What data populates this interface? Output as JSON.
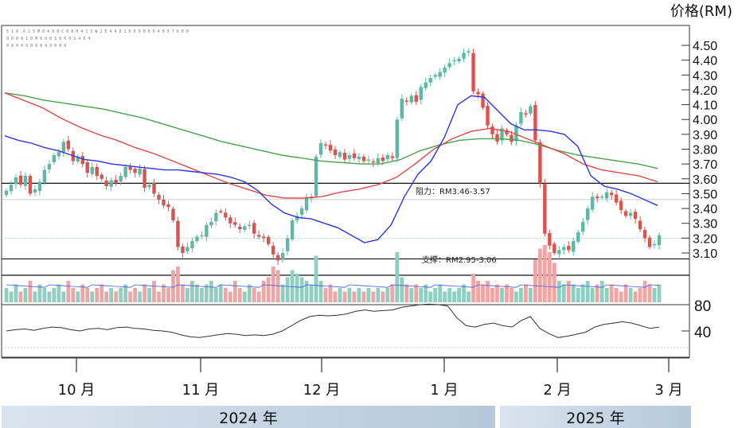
{
  "chart_data": {
    "type": "candlestick",
    "unit_label": "价格(RM)",
    "header_lines": [
      "5 1 0 .6 1 5 M 0 4 0 0 C 0 0 H 4 1 5 W 2 E 4 4 0 1 0 0 0 0 0 0 4 0 9 7 6 0 0",
      "0 0 0 0 1 0 M 0 0 0 5 0 0 0 1 4 0 4",
      "0 0 0 0 0 0 0 0 4 0 0 0 0"
    ],
    "price_axis": {
      "ylim": [
        3.02,
        4.55
      ],
      "ticks": [
        "4.50",
        "4.40",
        "4.30",
        "4.20",
        "4.10",
        "4.00",
        "3.90",
        "3.80",
        "3.70",
        "3.60",
        "3.50",
        "3.40",
        "3.30",
        "3.20",
        "3.10"
      ]
    },
    "indicator_axis": {
      "ticks": [
        "80",
        "40"
      ]
    },
    "months": [
      "10 月",
      "11 月",
      "12 月",
      "1 月",
      "2 月",
      "3 月"
    ],
    "years": [
      "2024 年",
      "2025 年"
    ],
    "resistance": {
      "label": "阻力：RM3.46-3.57",
      "low": 3.46,
      "high": 3.57
    },
    "support": {
      "label": "支撑：RM2.95-3.06",
      "low": 2.95,
      "high": 3.06
    },
    "closes": [
      3.52,
      3.56,
      3.61,
      3.56,
      3.62,
      3.5,
      3.53,
      3.58,
      3.66,
      3.7,
      3.76,
      3.78,
      3.85,
      3.8,
      3.72,
      3.75,
      3.7,
      3.64,
      3.68,
      3.62,
      3.6,
      3.55,
      3.59,
      3.57,
      3.62,
      3.68,
      3.66,
      3.64,
      3.67,
      3.54,
      3.56,
      3.5,
      3.46,
      3.42,
      3.41,
      3.32,
      3.14,
      3.1,
      3.14,
      3.18,
      3.21,
      3.22,
      3.29,
      3.31,
      3.37,
      3.38,
      3.34,
      3.3,
      3.29,
      3.26,
      3.28,
      3.29,
      3.23,
      3.21,
      3.2,
      3.16,
      3.09,
      3.05,
      3.1,
      3.2,
      3.32,
      3.35,
      3.4,
      3.47,
      3.48,
      3.75,
      3.84,
      3.83,
      3.79,
      3.76,
      3.78,
      3.73,
      3.76,
      3.74,
      3.75,
      3.72,
      3.73,
      3.71,
      3.74,
      3.72,
      3.76,
      3.74,
      4.0,
      4.14,
      4.12,
      4.16,
      4.12,
      4.22,
      4.25,
      4.28,
      4.3,
      4.32,
      4.35,
      4.38,
      4.4,
      4.41,
      4.45,
      4.46,
      4.19,
      4.17,
      4.08,
      3.96,
      3.9,
      3.85,
      3.94,
      3.9,
      3.85,
      3.96,
      4.05,
      4.04,
      4.09,
      3.86,
      3.57,
      3.23,
      3.15,
      3.1,
      3.12,
      3.14,
      3.12,
      3.18,
      3.24,
      3.31,
      3.4,
      3.48,
      3.47,
      3.48,
      3.51,
      3.49,
      3.44,
      3.39,
      3.35,
      3.37,
      3.33,
      3.26,
      3.2,
      3.14,
      3.16,
      3.22
    ],
    "ma_short": [
      3.89,
      3.86,
      3.84,
      3.81,
      3.79,
      3.76,
      3.73,
      3.72,
      3.7,
      3.69,
      3.68,
      3.67,
      3.66,
      3.66,
      3.65,
      3.64,
      3.63,
      3.61,
      3.58,
      3.52,
      3.43,
      3.37,
      3.34,
      3.33,
      3.3,
      3.27,
      3.22,
      3.17,
      3.19,
      3.29,
      3.48,
      3.63,
      3.72,
      3.88,
      4.1,
      4.16,
      4.15,
      4.06,
      3.97,
      3.93,
      3.93,
      3.92,
      3.9,
      3.82,
      3.62,
      3.55,
      3.53,
      3.5,
      3.46,
      3.42
    ],
    "ma_mid": [
      4.18,
      4.13,
      4.08,
      4.01,
      3.95,
      3.9,
      3.86,
      3.81,
      3.77,
      3.72,
      3.67,
      3.62,
      3.57,
      3.53,
      3.49,
      3.47,
      3.47,
      3.48,
      3.51,
      3.53,
      3.56,
      3.61,
      3.7,
      3.8,
      3.87,
      3.92,
      3.94,
      3.92,
      3.87,
      3.82,
      3.77,
      3.7,
      3.66,
      3.64,
      3.62,
      3.58
    ],
    "ma_long": [
      4.18,
      4.16,
      4.13,
      4.11,
      4.09,
      4.07,
      4.04,
      4.01,
      3.97,
      3.93,
      3.89,
      3.85,
      3.82,
      3.79,
      3.76,
      3.74,
      3.72,
      3.71,
      3.7,
      3.7,
      3.73,
      3.79,
      3.83,
      3.86,
      3.87,
      3.87,
      3.86,
      3.83,
      3.79,
      3.76,
      3.74,
      3.72,
      3.7,
      3.67
    ],
    "volume_series": [
      0.4,
      0.3,
      0.5,
      0.3,
      0.4,
      0.6,
      0.3,
      0.5,
      0.4,
      0.3,
      0.4,
      0.5,
      0.3,
      0.6,
      0.4,
      0.3,
      0.5,
      0.4,
      0.3,
      0.4,
      0.5,
      0.3,
      0.4,
      0.3,
      0.4,
      0.5,
      0.3,
      0.4,
      0.3,
      0.5,
      0.4,
      0.6,
      0.3,
      0.5,
      0.4,
      0.9,
      1.0,
      0.5,
      0.4,
      0.6,
      0.5,
      0.4,
      0.5,
      0.6,
      0.4,
      0.5,
      0.4,
      0.3,
      0.6,
      0.4,
      0.3,
      0.5,
      0.4,
      0.3,
      0.6,
      0.7,
      1.0,
      0.9,
      0.5,
      0.7,
      0.9,
      0.8,
      0.7,
      0.6,
      0.5,
      1.3,
      0.6,
      0.4,
      0.5,
      0.3,
      0.4,
      0.3,
      0.4,
      0.3,
      0.4,
      0.3,
      0.4,
      0.3,
      0.4,
      0.3,
      0.4,
      0.5,
      1.4,
      0.7,
      0.5,
      0.4,
      0.5,
      0.4,
      0.5,
      0.3,
      0.4,
      0.5,
      0.3,
      0.4,
      0.3,
      0.4,
      0.5,
      0.3,
      0.8,
      0.6,
      0.5,
      0.6,
      0.4,
      0.5,
      0.4,
      0.5,
      0.4,
      0.3,
      0.4,
      0.5,
      0.4,
      1.2,
      1.5,
      1.6,
      1.4,
      1.1,
      0.6,
      0.5,
      0.6,
      0.5,
      0.4,
      0.5,
      0.6,
      0.4,
      0.5,
      0.6,
      0.4,
      0.5,
      0.4,
      0.3,
      0.5,
      0.4,
      0.3,
      0.4,
      0.6,
      0.5,
      0.4,
      0.5
    ],
    "indicator_series": [
      40,
      42,
      43,
      41,
      44,
      46,
      45,
      42,
      40,
      43,
      44,
      42,
      45,
      46,
      44,
      43,
      41,
      40,
      38,
      34,
      31,
      30,
      32,
      34,
      36,
      35,
      33,
      34,
      33,
      35,
      40,
      48,
      56,
      62,
      64,
      63,
      64,
      66,
      70,
      72,
      70,
      71,
      72,
      76,
      78,
      80,
      81,
      80,
      78,
      60,
      48,
      46,
      50,
      52,
      48,
      46,
      56,
      62,
      44,
      36,
      30,
      32,
      35,
      38,
      46,
      50,
      52,
      54,
      52,
      48,
      44,
      46
    ]
  },
  "colors": {
    "up": "#5fb8a6",
    "down": "#d9534f",
    "volume_up": "#8fcfc1",
    "volume_down": "#f0a5a5",
    "ma_short": "#2b35e0",
    "ma_mid": "#e04848",
    "ma_long": "#47a24a",
    "indicator": "#333333"
  }
}
